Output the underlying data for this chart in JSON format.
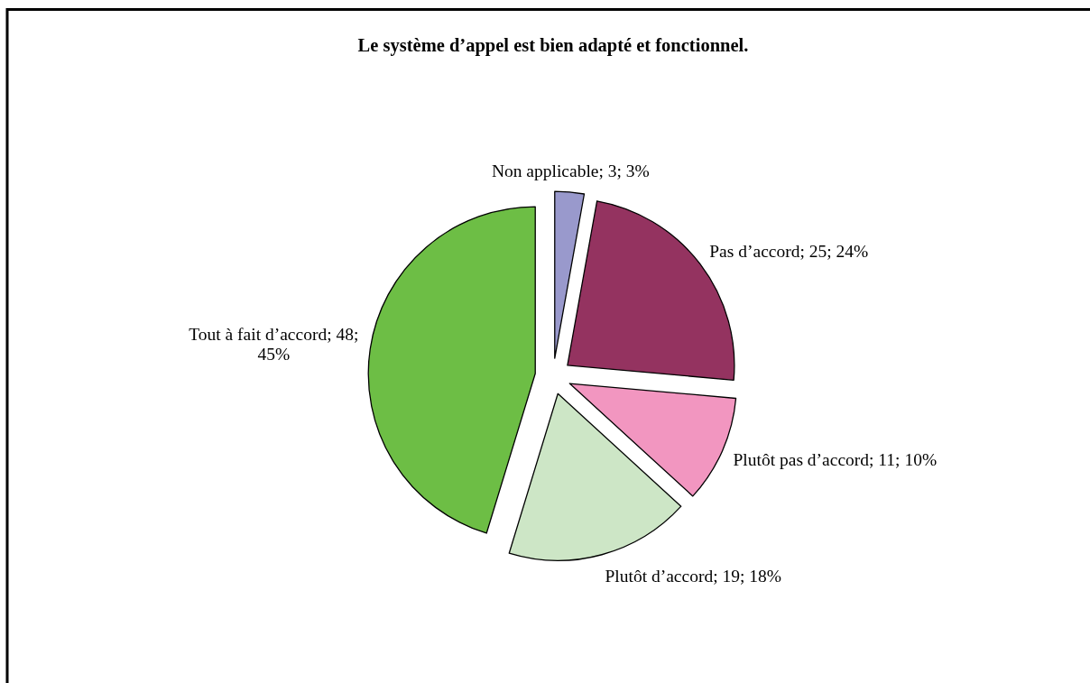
{
  "chart_data": {
    "type": "pie",
    "title": "Le système d’appel est bien adapté et fonctionnel.",
    "categories": [
      "Non applicable",
      "Pas d’accord",
      "Plutôt pas d’accord",
      "Plutôt d’accord",
      "Tout à fait d’accord"
    ],
    "values": [
      3,
      25,
      11,
      19,
      48
    ],
    "colors": [
      "#9999cc",
      "#943360",
      "#f296c0",
      "#cde6c6",
      "#6dbe45"
    ],
    "value_labels": [
      "3; 3%",
      "25; 24%",
      "11; 10%",
      "19; 18%",
      "48; 45%"
    ]
  }
}
